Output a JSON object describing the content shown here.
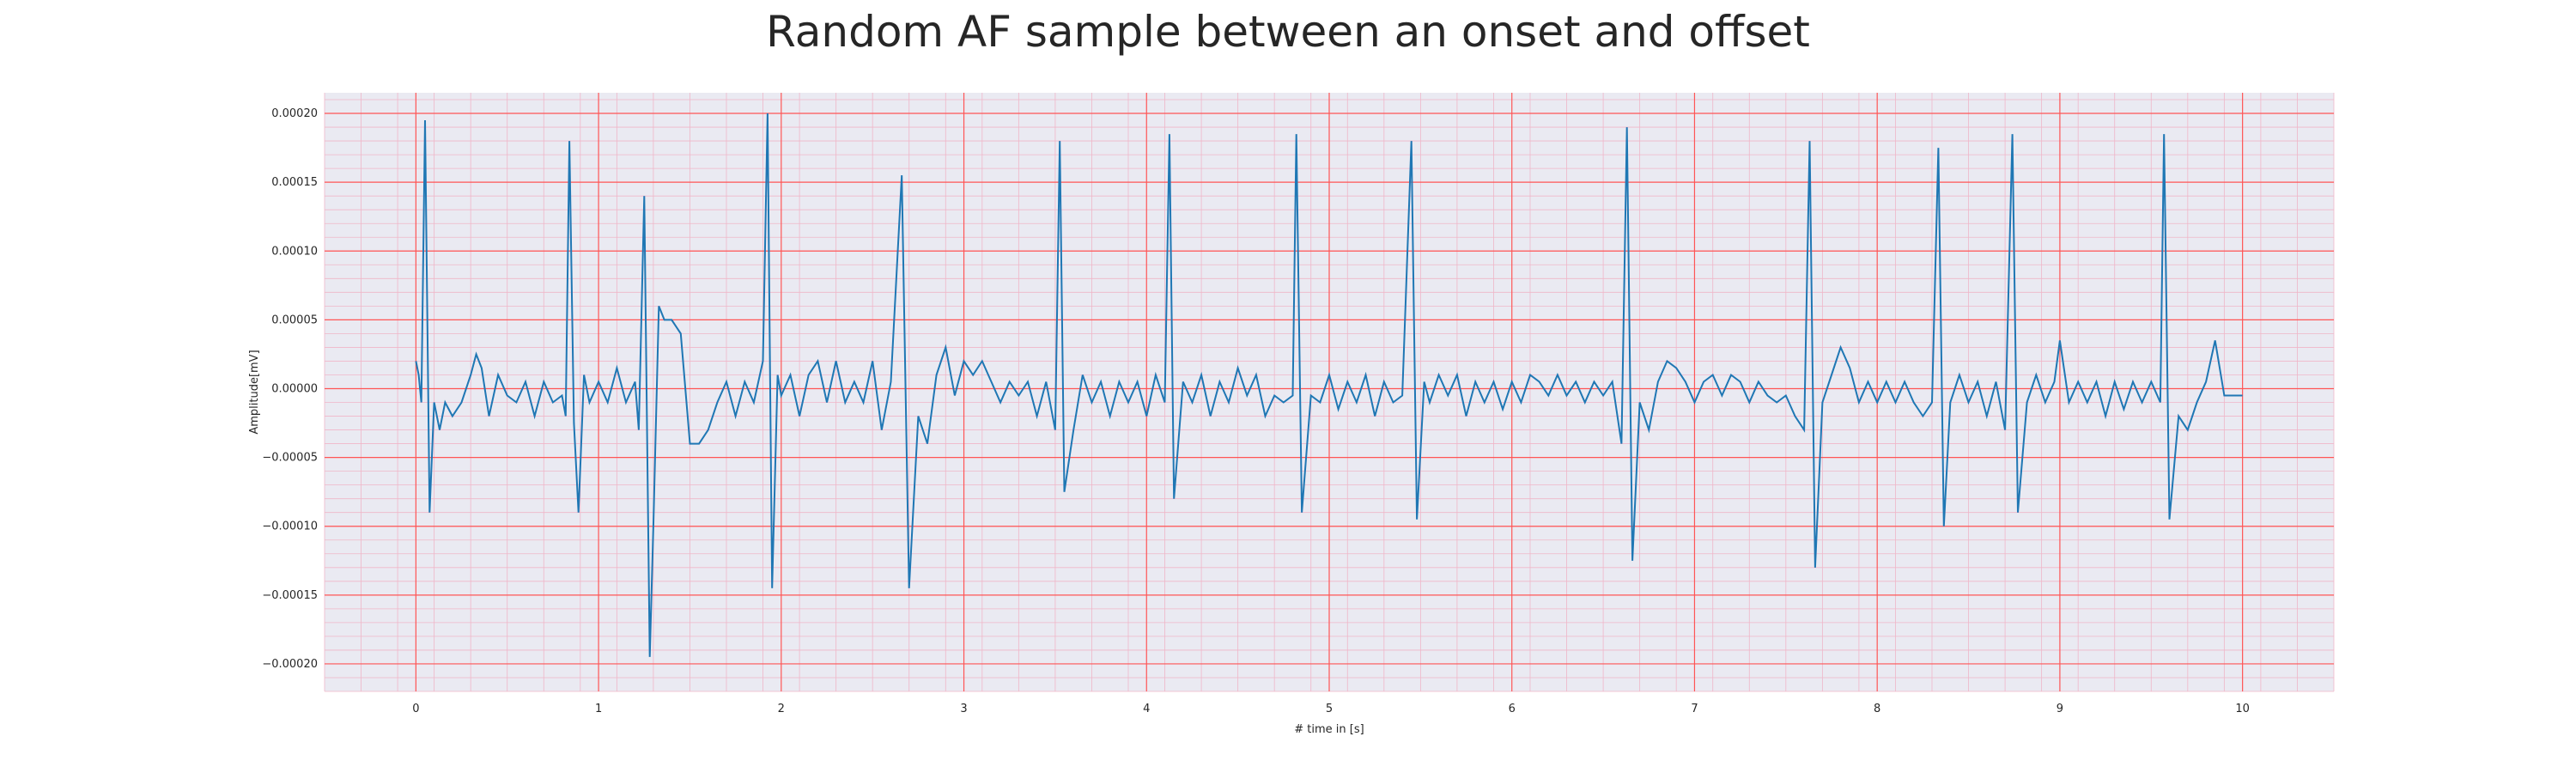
{
  "chart_data": {
    "type": "line",
    "title": "Random AF sample between an onset and offset",
    "xlabel": "# time in [s]",
    "ylabel": "Amplitude[mV]",
    "xlim": [
      -0.5,
      10.5
    ],
    "ylim": [
      -0.00022,
      0.000215
    ],
    "x_ticks": [
      0,
      1,
      2,
      3,
      4,
      5,
      6,
      7,
      8,
      9,
      10
    ],
    "x_tick_labels": [
      "0",
      "1",
      "2",
      "3",
      "4",
      "5",
      "6",
      "7",
      "8",
      "9",
      "10"
    ],
    "y_ticks": [
      0.0002,
      0.00015,
      0.0001,
      5e-05,
      0.0,
      -5e-05,
      -0.0001,
      -0.00015,
      -0.0002
    ],
    "y_tick_labels": [
      "0.00020",
      "0.00015",
      "0.00010",
      "0.00005",
      "0.00000",
      "−0.00005",
      "−0.00010",
      "−0.00015",
      "−0.00020"
    ],
    "grid": true,
    "minor_grid": true,
    "colors": {
      "line": "#1f77b4",
      "major_grid": "#ff5555",
      "minor_grid": "#f0b6c8",
      "plot_bg": "#eaeaf2"
    },
    "series": [
      {
        "points": [
          [
            0.0,
            2e-05
          ],
          [
            0.015,
            1e-05
          ],
          [
            0.03,
            -1e-05
          ],
          [
            0.05,
            0.000195
          ],
          [
            0.075,
            -9e-05
          ],
          [
            0.1,
            -1e-05
          ],
          [
            0.13,
            -3e-05
          ],
          [
            0.16,
            -1e-05
          ],
          [
            0.2,
            -2e-05
          ],
          [
            0.25,
            -1e-05
          ],
          [
            0.3,
            1e-05
          ],
          [
            0.33,
            2.5e-05
          ],
          [
            0.36,
            1.5e-05
          ],
          [
            0.4,
            -2e-05
          ],
          [
            0.45,
            1e-05
          ],
          [
            0.5,
            -5e-06
          ],
          [
            0.55,
            -1e-05
          ],
          [
            0.6,
            5e-06
          ],
          [
            0.65,
            -2e-05
          ],
          [
            0.7,
            5e-06
          ],
          [
            0.75,
            -1e-05
          ],
          [
            0.8,
            -5e-06
          ],
          [
            0.82,
            -2e-05
          ],
          [
            0.84,
            0.00018
          ],
          [
            0.865,
            -2.5e-05
          ],
          [
            0.89,
            -9e-05
          ],
          [
            0.92,
            1e-05
          ],
          [
            0.95,
            -1e-05
          ],
          [
            1.0,
            5e-06
          ],
          [
            1.05,
            -1e-05
          ],
          [
            1.1,
            1.5e-05
          ],
          [
            1.15,
            -1e-05
          ],
          [
            1.2,
            5e-06
          ],
          [
            1.22,
            -3e-05
          ],
          [
            1.25,
            0.00014
          ],
          [
            1.28,
            -0.000195
          ],
          [
            1.3,
            -0.0001
          ],
          [
            1.33,
            6e-05
          ],
          [
            1.36,
            5e-05
          ],
          [
            1.4,
            5e-05
          ],
          [
            1.45,
            4e-05
          ],
          [
            1.5,
            -4e-05
          ],
          [
            1.55,
            -4e-05
          ],
          [
            1.6,
            -3e-05
          ],
          [
            1.65,
            -1e-05
          ],
          [
            1.7,
            5e-06
          ],
          [
            1.75,
            -2e-05
          ],
          [
            1.8,
            5e-06
          ],
          [
            1.85,
            -1e-05
          ],
          [
            1.9,
            2e-05
          ],
          [
            1.925,
            0.0002
          ],
          [
            1.95,
            -0.000145
          ],
          [
            1.98,
            1e-05
          ],
          [
            2.0,
            -5e-06
          ],
          [
            2.05,
            1e-05
          ],
          [
            2.1,
            -2e-05
          ],
          [
            2.15,
            1e-05
          ],
          [
            2.2,
            2e-05
          ],
          [
            2.25,
            -1e-05
          ],
          [
            2.3,
            2e-05
          ],
          [
            2.35,
            -1e-05
          ],
          [
            2.4,
            5e-06
          ],
          [
            2.45,
            -1e-05
          ],
          [
            2.5,
            2e-05
          ],
          [
            2.55,
            -3e-05
          ],
          [
            2.6,
            5e-06
          ],
          [
            2.66,
            0.000155
          ],
          [
            2.7,
            -0.000145
          ],
          [
            2.75,
            -2e-05
          ],
          [
            2.8,
            -4e-05
          ],
          [
            2.85,
            1e-05
          ],
          [
            2.9,
            3e-05
          ],
          [
            2.95,
            -5e-06
          ],
          [
            3.0,
            2e-05
          ],
          [
            3.05,
            1e-05
          ],
          [
            3.1,
            2e-05
          ],
          [
            3.15,
            5e-06
          ],
          [
            3.2,
            -1e-05
          ],
          [
            3.25,
            5e-06
          ],
          [
            3.3,
            -5e-06
          ],
          [
            3.35,
            5e-06
          ],
          [
            3.4,
            -2e-05
          ],
          [
            3.45,
            5e-06
          ],
          [
            3.5,
            -3e-05
          ],
          [
            3.525,
            0.00018
          ],
          [
            3.55,
            -7.5e-05
          ],
          [
            3.6,
            -3e-05
          ],
          [
            3.65,
            1e-05
          ],
          [
            3.7,
            -1e-05
          ],
          [
            3.75,
            5e-06
          ],
          [
            3.8,
            -2e-05
          ],
          [
            3.85,
            5e-06
          ],
          [
            3.9,
            -1e-05
          ],
          [
            3.95,
            5e-06
          ],
          [
            4.0,
            -2e-05
          ],
          [
            4.05,
            1e-05
          ],
          [
            4.1,
            -1e-05
          ],
          [
            4.125,
            0.000185
          ],
          [
            4.15,
            -8e-05
          ],
          [
            4.2,
            5e-06
          ],
          [
            4.25,
            -1e-05
          ],
          [
            4.3,
            1e-05
          ],
          [
            4.35,
            -2e-05
          ],
          [
            4.4,
            5e-06
          ],
          [
            4.45,
            -1e-05
          ],
          [
            4.5,
            1.5e-05
          ],
          [
            4.55,
            -5e-06
          ],
          [
            4.6,
            1e-05
          ],
          [
            4.65,
            -2e-05
          ],
          [
            4.7,
            -5e-06
          ],
          [
            4.75,
            -1e-05
          ],
          [
            4.8,
            -5e-06
          ],
          [
            4.82,
            0.000185
          ],
          [
            4.85,
            -9e-05
          ],
          [
            4.9,
            -5e-06
          ],
          [
            4.95,
            -1e-05
          ],
          [
            5.0,
            1e-05
          ],
          [
            5.05,
            -1.5e-05
          ],
          [
            5.1,
            5e-06
          ],
          [
            5.15,
            -1e-05
          ],
          [
            5.2,
            1e-05
          ],
          [
            5.25,
            -2e-05
          ],
          [
            5.3,
            5e-06
          ],
          [
            5.35,
            -1e-05
          ],
          [
            5.4,
            -5e-06
          ],
          [
            5.45,
            0.00018
          ],
          [
            5.48,
            -9.5e-05
          ],
          [
            5.52,
            5e-06
          ],
          [
            5.55,
            -1e-05
          ],
          [
            5.6,
            1e-05
          ],
          [
            5.65,
            -5e-06
          ],
          [
            5.7,
            1e-05
          ],
          [
            5.75,
            -2e-05
          ],
          [
            5.8,
            5e-06
          ],
          [
            5.85,
            -1e-05
          ],
          [
            5.9,
            5e-06
          ],
          [
            5.95,
            -1.5e-05
          ],
          [
            6.0,
            5e-06
          ],
          [
            6.05,
            -1e-05
          ],
          [
            6.1,
            1e-05
          ],
          [
            6.15,
            5e-06
          ],
          [
            6.2,
            -5e-06
          ],
          [
            6.25,
            1e-05
          ],
          [
            6.3,
            -5e-06
          ],
          [
            6.35,
            5e-06
          ],
          [
            6.4,
            -1e-05
          ],
          [
            6.45,
            5e-06
          ],
          [
            6.5,
            -5e-06
          ],
          [
            6.55,
            5e-06
          ],
          [
            6.6,
            -4e-05
          ],
          [
            6.63,
            0.00019
          ],
          [
            6.66,
            -0.000125
          ],
          [
            6.7,
            -1e-05
          ],
          [
            6.75,
            -3e-05
          ],
          [
            6.8,
            5e-06
          ],
          [
            6.85,
            2e-05
          ],
          [
            6.9,
            1.5e-05
          ],
          [
            6.95,
            5e-06
          ],
          [
            7.0,
            -1e-05
          ],
          [
            7.05,
            5e-06
          ],
          [
            7.1,
            1e-05
          ],
          [
            7.15,
            -5e-06
          ],
          [
            7.2,
            1e-05
          ],
          [
            7.25,
            5e-06
          ],
          [
            7.3,
            -1e-05
          ],
          [
            7.35,
            5e-06
          ],
          [
            7.4,
            -5e-06
          ],
          [
            7.45,
            -1e-05
          ],
          [
            7.5,
            -5e-06
          ],
          [
            7.55,
            -2e-05
          ],
          [
            7.6,
            -3e-05
          ],
          [
            7.63,
            0.00018
          ],
          [
            7.66,
            -0.00013
          ],
          [
            7.7,
            -1e-05
          ],
          [
            7.75,
            1e-05
          ],
          [
            7.8,
            3e-05
          ],
          [
            7.85,
            1.5e-05
          ],
          [
            7.9,
            -1e-05
          ],
          [
            7.95,
            5e-06
          ],
          [
            8.0,
            -1e-05
          ],
          [
            8.05,
            5e-06
          ],
          [
            8.1,
            -1e-05
          ],
          [
            8.15,
            5e-06
          ],
          [
            8.2,
            -1e-05
          ],
          [
            8.25,
            -2e-05
          ],
          [
            8.3,
            -1e-05
          ],
          [
            8.335,
            0.000175
          ],
          [
            8.365,
            -0.0001
          ],
          [
            8.4,
            -1e-05
          ],
          [
            8.45,
            1e-05
          ],
          [
            8.5,
            -1e-05
          ],
          [
            8.55,
            5e-06
          ],
          [
            8.6,
            -2e-05
          ],
          [
            8.65,
            5e-06
          ],
          [
            8.7,
            -3e-05
          ],
          [
            8.74,
            0.000185
          ],
          [
            8.77,
            -9e-05
          ],
          [
            8.82,
            -1e-05
          ],
          [
            8.87,
            1e-05
          ],
          [
            8.92,
            -1e-05
          ],
          [
            8.97,
            5e-06
          ],
          [
            9.0,
            3.5e-05
          ],
          [
            9.05,
            -1e-05
          ],
          [
            9.1,
            5e-06
          ],
          [
            9.15,
            -1e-05
          ],
          [
            9.2,
            5e-06
          ],
          [
            9.25,
            -2e-05
          ],
          [
            9.3,
            5e-06
          ],
          [
            9.35,
            -1.5e-05
          ],
          [
            9.4,
            5e-06
          ],
          [
            9.45,
            -1e-05
          ],
          [
            9.5,
            5e-06
          ],
          [
            9.55,
            -1e-05
          ],
          [
            9.57,
            0.000185
          ],
          [
            9.6,
            -9.5e-05
          ],
          [
            9.65,
            -2e-05
          ],
          [
            9.7,
            -3e-05
          ],
          [
            9.75,
            -1e-05
          ],
          [
            9.8,
            5e-06
          ],
          [
            9.85,
            3.5e-05
          ],
          [
            9.9,
            -5e-06
          ],
          [
            9.95,
            -5e-06
          ],
          [
            10.0,
            -5e-06
          ]
        ]
      }
    ]
  }
}
